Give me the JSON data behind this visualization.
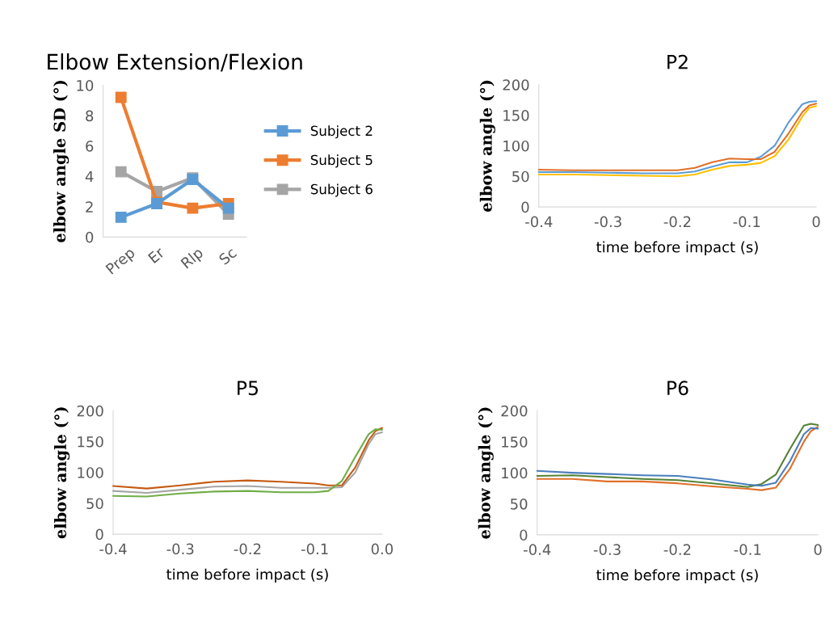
{
  "chart_data": [
    {
      "type": "line",
      "title": "Elbow Extension/Flexion",
      "ylabel": "elbow angle SD (°)",
      "categories": [
        "Prep",
        "Er",
        "Rlp",
        "Sc"
      ],
      "ylim": [
        0,
        10
      ],
      "yticks": [
        0,
        2,
        4,
        6,
        8,
        10
      ],
      "marker": "square",
      "line_style": "solid",
      "grid": false,
      "legend": "right",
      "series": [
        {
          "name": "Subject 2",
          "color": "#5b9bd5",
          "values": [
            1.3,
            2.2,
            3.8,
            1.9
          ]
        },
        {
          "name": "Subject 5",
          "color": "#ed7d31",
          "values": [
            9.2,
            2.3,
            1.9,
            2.2
          ]
        },
        {
          "name": "Subject 6",
          "color": "#a5a5a5",
          "values": [
            4.3,
            3.0,
            3.9,
            1.5
          ]
        }
      ]
    },
    {
      "type": "line",
      "title": "P2",
      "xlabel": "time before impact (s)",
      "ylabel": "elbow angle (°)",
      "xlim": [
        -0.4,
        0
      ],
      "xticks": [
        -0.4,
        -0.3,
        -0.2,
        -0.1,
        0
      ],
      "ylim": [
        0,
        200
      ],
      "yticks": [
        0,
        50,
        100,
        150,
        200
      ],
      "marker": "none",
      "line_style": "solid",
      "grid": false,
      "x": [
        -0.4,
        -0.35,
        -0.3,
        -0.25,
        -0.2,
        -0.175,
        -0.15,
        -0.125,
        -0.1,
        -0.08,
        -0.06,
        -0.04,
        -0.02,
        -0.01,
        0
      ],
      "series": [
        {
          "color": "#e0702a",
          "values": [
            61,
            60,
            60,
            60,
            60,
            64,
            73,
            79,
            78,
            78,
            90,
            120,
            155,
            166,
            169
          ]
        },
        {
          "color": "#ffc000",
          "values": [
            53,
            53,
            52,
            51,
            50,
            53,
            61,
            67,
            69,
            72,
            83,
            110,
            148,
            162,
            165
          ]
        },
        {
          "color": "#5b9bd5",
          "values": [
            57,
            57,
            56,
            55,
            55,
            58,
            66,
            73,
            73,
            82,
            100,
            138,
            168,
            172,
            173
          ]
        }
      ]
    },
    {
      "type": "line",
      "title": "P5",
      "xlabel": "time before impact (s)",
      "ylabel": "elbow angle (°)",
      "xlim": [
        -0.4,
        0
      ],
      "xticks": [
        -0.4,
        -0.3,
        -0.2,
        -0.1,
        {
          "value": 0,
          "label": "0.0"
        }
      ],
      "ylim": [
        0,
        200
      ],
      "yticks": [
        0,
        50,
        100,
        150,
        200
      ],
      "marker": "none",
      "line_style": "solid",
      "grid": false,
      "x": [
        -0.4,
        -0.35,
        -0.3,
        -0.25,
        -0.2,
        -0.15,
        -0.1,
        -0.08,
        -0.06,
        -0.04,
        -0.02,
        -0.01,
        0
      ],
      "series": [
        {
          "color": "#70ad47",
          "values": [
            62,
            61,
            66,
            69,
            70,
            68,
            68,
            70,
            86,
            125,
            162,
            170,
            169
          ]
        },
        {
          "color": "#c55a11",
          "values": [
            78,
            74,
            79,
            85,
            87,
            85,
            82,
            79,
            79,
            108,
            152,
            167,
            172
          ]
        },
        {
          "color": "#a5a5a5",
          "values": [
            70,
            67,
            72,
            77,
            78,
            75,
            75,
            75,
            76,
            100,
            146,
            162,
            165
          ]
        }
      ]
    },
    {
      "type": "line",
      "title": "P6",
      "xlabel": "time before impact (s)",
      "ylabel": "elbow angle (°)",
      "xlim": [
        -0.4,
        0
      ],
      "xticks": [
        -0.4,
        -0.3,
        -0.2,
        -0.1,
        0
      ],
      "ylim": [
        0,
        200
      ],
      "yticks": [
        0,
        50,
        100,
        150,
        200
      ],
      "marker": "none",
      "line_style": "solid",
      "grid": false,
      "x": [
        -0.4,
        -0.35,
        -0.3,
        -0.25,
        -0.2,
        -0.15,
        -0.1,
        -0.08,
        -0.06,
        -0.04,
        -0.02,
        -0.01,
        0
      ],
      "series": [
        {
          "color": "#4a7ebb",
          "values": [
            103,
            100,
            98,
            96,
            95,
            89,
            81,
            79,
            84,
            118,
            162,
            172,
            171
          ]
        },
        {
          "color": "#e0702a",
          "values": [
            90,
            90,
            86,
            86,
            83,
            78,
            74,
            72,
            76,
            106,
            150,
            167,
            174
          ]
        },
        {
          "color": "#548235",
          "values": [
            95,
            96,
            93,
            90,
            88,
            83,
            77,
            82,
            97,
            138,
            176,
            179,
            177
          ]
        }
      ]
    }
  ]
}
